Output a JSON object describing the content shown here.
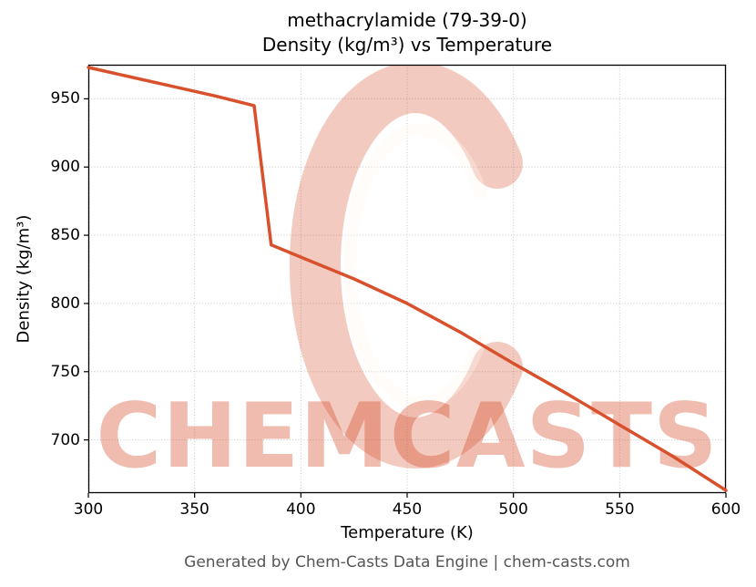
{
  "title_line1": "methacrylamide (79-39-0)",
  "title_line2": "Density (kg/m³) vs Temperature",
  "watermark_text": "CHEMCASTS",
  "footer_text": "Generated by Chem-Casts Data Engine | chem-casts.com",
  "chart_data": {
    "type": "line",
    "title": "methacrylamide (79-39-0) — Density (kg/m³) vs Temperature",
    "xlabel": "Temperature (K)",
    "ylabel": "Density (kg/m³)",
    "xlim": [
      300,
      600
    ],
    "ylim": [
      661,
      975
    ],
    "xticks": [
      300,
      350,
      400,
      450,
      500,
      550,
      600
    ],
    "yticks": [
      700,
      750,
      800,
      850,
      900,
      950
    ],
    "grid": true,
    "legend": "none",
    "line_color": "#d9512c",
    "watermark_color": "#d6502c",
    "series": [
      {
        "name": "Density",
        "x": [
          300,
          320,
          340,
          360,
          378,
          386,
          400,
          425,
          450,
          475,
          500,
          525,
          550,
          575,
          600
        ],
        "y": [
          973,
          966,
          959,
          952,
          945,
          843,
          834,
          818,
          800,
          779,
          756,
          734,
          711,
          688,
          663
        ]
      }
    ]
  }
}
